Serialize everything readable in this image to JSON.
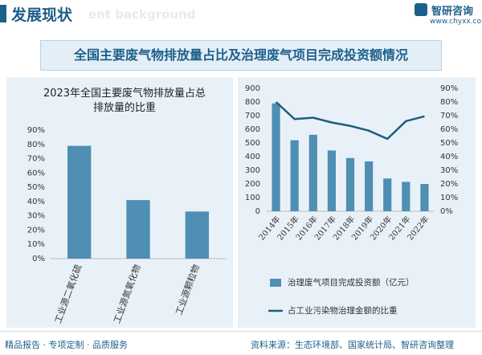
{
  "header": {
    "title": "发展现状",
    "subtitle": "ent background",
    "brand": "智研咨询",
    "website": "www.chyxx.com"
  },
  "banner": {
    "title": "全国主要废气物排放量占比及治理废气项目完成投资额情况"
  },
  "chart_data": [
    {
      "type": "bar",
      "title": "2023年全国主要废气物排放量占总排放量的比重",
      "categories": [
        "工业源二氧化硫",
        "工业源氮氧化物",
        "工业源颗粒物"
      ],
      "values": [
        79,
        41,
        33
      ],
      "color": "#4e8fb3",
      "ylim": [
        0,
        90
      ],
      "yticks": [
        {
          "value": 0,
          "label": "0%"
        },
        {
          "value": 10,
          "label": "10%"
        },
        {
          "value": 20,
          "label": "20%"
        },
        {
          "value": 30,
          "label": "30%"
        },
        {
          "value": 40,
          "label": "40%"
        },
        {
          "value": 50,
          "label": "50%"
        },
        {
          "value": 60,
          "label": "60%"
        },
        {
          "value": 70,
          "label": "70%"
        },
        {
          "value": 80,
          "label": "80%"
        },
        {
          "value": 90,
          "label": "90%"
        }
      ]
    },
    {
      "type": "combo",
      "categories": [
        "2014年",
        "2015年",
        "2016年",
        "2017年",
        "2018年",
        "2019年",
        "2020年",
        "2021年",
        "2022年"
      ],
      "series": [
        {
          "name": "治理废气项目完成投资额（亿元）",
          "type": "bar",
          "color": "#4e8fb3",
          "values": [
            790,
            520,
            560,
            445,
            390,
            365,
            240,
            215,
            200
          ]
        },
        {
          "name": "占工业污染物治理金额的比重",
          "type": "line",
          "axis": "y2",
          "color": "#1d5f7a",
          "values": [
            80,
            67.5,
            68.5,
            65,
            62.5,
            59,
            53,
            66,
            69.5
          ]
        }
      ],
      "ylim": [
        0,
        900
      ],
      "yticks": [
        0,
        100,
        200,
        300,
        400,
        500,
        600,
        700,
        800,
        900
      ],
      "y2lim": [
        0,
        90
      ],
      "y2ticks": [
        {
          "value": 0,
          "label": "0%"
        },
        {
          "value": 10,
          "label": "10%"
        },
        {
          "value": 20,
          "label": "20%"
        },
        {
          "value": 30,
          "label": "30%"
        },
        {
          "value": 40,
          "label": "40%"
        },
        {
          "value": 50,
          "label": "50%"
        },
        {
          "value": 60,
          "label": "60%"
        },
        {
          "value": 70,
          "label": "70%"
        },
        {
          "value": 80,
          "label": "80%"
        },
        {
          "value": 90,
          "label": "90%"
        }
      ]
    }
  ],
  "footer": {
    "slogan": "精品报告 · 专项定制 · 品质服务",
    "source": "资料来源：生态环境部、国家统计局、智研咨询整理"
  }
}
